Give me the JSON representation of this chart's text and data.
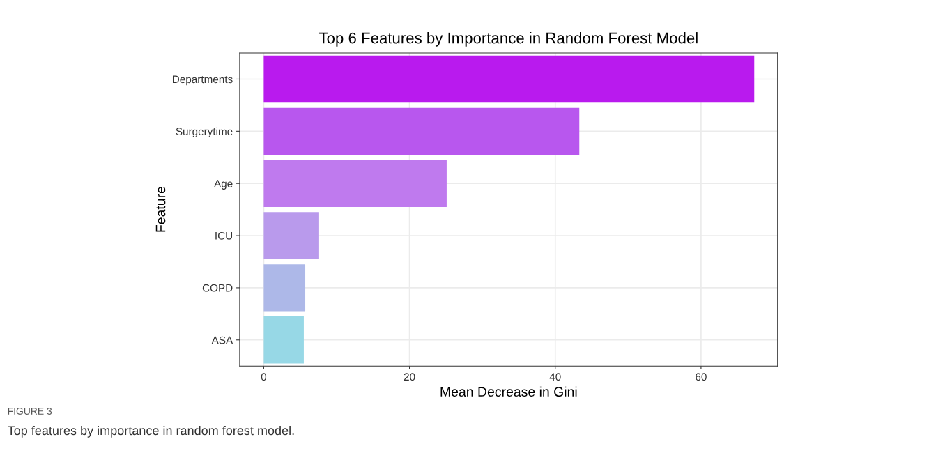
{
  "chart_data": {
    "type": "bar",
    "orientation": "horizontal",
    "title": "Top 6 Features by Importance in Random Forest Model",
    "xlabel": "Mean Decrease in Gini",
    "ylabel": "Feature",
    "categories": [
      "Departments",
      "Surgerytime",
      "Age",
      "ICU",
      "COPD",
      "ASA"
    ],
    "values": [
      67.3,
      43.3,
      25.1,
      7.6,
      5.7,
      5.5
    ],
    "colors": [
      "#b91aee",
      "#b857ee",
      "#bf7aee",
      "#b99aec",
      "#adb8e8",
      "#97d8e6"
    ],
    "xlim": [
      -3.3,
      70.5
    ],
    "xticks": [
      0,
      20,
      40,
      60
    ],
    "grid": true,
    "annotations": [
      "FIGURE 3",
      "Top features by importance in random forest model."
    ]
  }
}
